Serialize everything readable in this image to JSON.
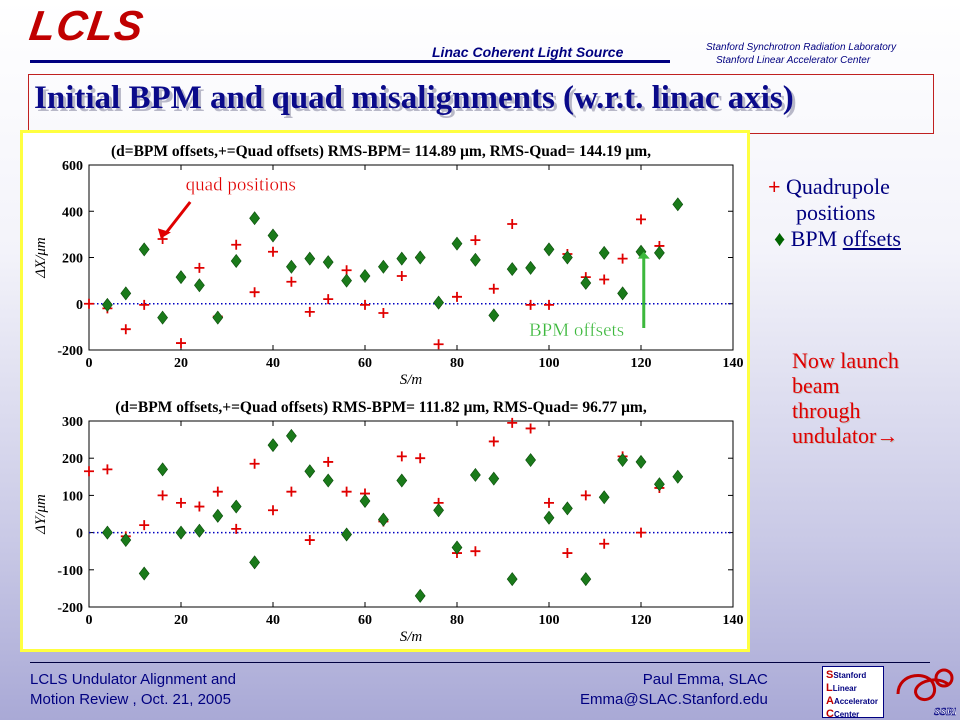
{
  "header": {
    "logo_text": "LCLS",
    "subtitle": "Linac Coherent Light Source",
    "lab_line1": "Stanford Synchrotron Radiation Laboratory",
    "lab_line2": "Stanford Linear Accelerator Center"
  },
  "title": "Initial BPM and quad misalignments (w.r.t. linac axis)",
  "colors": {
    "quad": "#e00000",
    "bpm": "#1a7a1a",
    "axis_text": "#000000",
    "title": "#0a0a8a",
    "zero_line": "#0000c0"
  },
  "chart_data": [
    {
      "type": "scatter",
      "title": "(d=BPM offsets,+=Quad offsets) RMS-BPM= 114.89 μm, RMS-Quad= 144.19 μm,",
      "xlabel": "S/m",
      "ylabel": "ΔX/μm",
      "xlim": [
        0,
        140
      ],
      "ylim": [
        -200,
        600
      ],
      "xticks": [
        0,
        20,
        40,
        60,
        80,
        100,
        120,
        140
      ],
      "yticks": [
        -200,
        0,
        200,
        400,
        600
      ],
      "grid": false,
      "annotations": [
        "quad positions",
        "BPM offsets"
      ],
      "series": [
        {
          "name": "Quad offsets",
          "marker": "+",
          "x": [
            0,
            4,
            8,
            12,
            16,
            20,
            24,
            28,
            32,
            36,
            40,
            44,
            48,
            52,
            56,
            60,
            64,
            68,
            72,
            76,
            80,
            84,
            88,
            92,
            96,
            100,
            104,
            108,
            112,
            116,
            120,
            124
          ],
          "y": [
            0,
            -20,
            -110,
            -5,
            280,
            -170,
            155,
            -55,
            255,
            50,
            225,
            95,
            -35,
            20,
            145,
            -5,
            -40,
            120,
            200,
            -175,
            30,
            275,
            65,
            345,
            -5,
            -5,
            215,
            115,
            105,
            195,
            365,
            250
          ]
        },
        {
          "name": "BPM offsets",
          "marker": "diamond",
          "x": [
            4,
            8,
            12,
            16,
            20,
            24,
            28,
            32,
            36,
            40,
            44,
            48,
            52,
            56,
            60,
            64,
            68,
            72,
            76,
            80,
            84,
            88,
            92,
            96,
            100,
            104,
            108,
            112,
            116,
            120,
            124,
            128
          ],
          "y": [
            -5,
            45,
            235,
            -60,
            115,
            80,
            -60,
            185,
            370,
            295,
            160,
            195,
            180,
            100,
            120,
            160,
            195,
            200,
            5,
            260,
            190,
            -50,
            150,
            155,
            235,
            200,
            90,
            220,
            45,
            225,
            220,
            430
          ]
        }
      ]
    },
    {
      "type": "scatter",
      "title": "(d=BPM offsets,+=Quad offsets) RMS-BPM= 111.82 μm, RMS-Quad= 96.77 μm,",
      "xlabel": "S/m",
      "ylabel": "ΔY/μm",
      "xlim": [
        0,
        140
      ],
      "ylim": [
        -200,
        300
      ],
      "xticks": [
        0,
        20,
        40,
        60,
        80,
        100,
        120,
        140
      ],
      "yticks": [
        -200,
        -100,
        0,
        100,
        200,
        300
      ],
      "grid": false,
      "series": [
        {
          "name": "Quad offsets",
          "marker": "+",
          "x": [
            0,
            4,
            8,
            12,
            16,
            20,
            24,
            28,
            32,
            36,
            40,
            44,
            48,
            52,
            56,
            60,
            64,
            68,
            72,
            76,
            80,
            84,
            88,
            92,
            96,
            100,
            104,
            108,
            112,
            116,
            120,
            124
          ],
          "y": [
            165,
            170,
            -10,
            20,
            100,
            80,
            70,
            110,
            10,
            185,
            60,
            110,
            -20,
            190,
            110,
            105,
            30,
            205,
            200,
            80,
            -55,
            -50,
            245,
            295,
            280,
            80,
            -55,
            100,
            -30,
            205,
            0,
            120
          ]
        },
        {
          "name": "BPM offsets",
          "marker": "diamond",
          "x": [
            4,
            8,
            12,
            16,
            20,
            24,
            28,
            32,
            36,
            40,
            44,
            48,
            52,
            56,
            60,
            64,
            68,
            72,
            76,
            80,
            84,
            88,
            92,
            96,
            100,
            104,
            108,
            112,
            116,
            120,
            124,
            128
          ],
          "y": [
            0,
            -20,
            -110,
            170,
            0,
            5,
            45,
            70,
            -80,
            235,
            260,
            165,
            140,
            -5,
            85,
            35,
            140,
            -170,
            60,
            -40,
            155,
            145,
            -125,
            195,
            40,
            65,
            -125,
            95,
            195,
            190,
            130,
            150
          ]
        }
      ]
    }
  ],
  "legend": {
    "plus_symbol": "+",
    "quad_label_1": "Quadrupole",
    "quad_label_2": "positions",
    "diamond_symbol": "♦",
    "bpm_label": "BPM",
    "bpm_label_2": "offsets"
  },
  "note": {
    "line1": "Now launch",
    "line2": "beam",
    "line3": "through",
    "line4": "undulator→"
  },
  "footer": {
    "left_line1": "LCLS Undulator Alignment and",
    "left_line2": "Motion Review , Oct. 21, 2005",
    "mid_line1": "Paul Emma, SLAC",
    "mid_line2": "Emma@SLAC.Stanford.edu",
    "slac_logo_lines": [
      "Stanford",
      "Linear",
      "Accelerator",
      "Center"
    ],
    "ssrl_logo_text": "SSRL"
  }
}
